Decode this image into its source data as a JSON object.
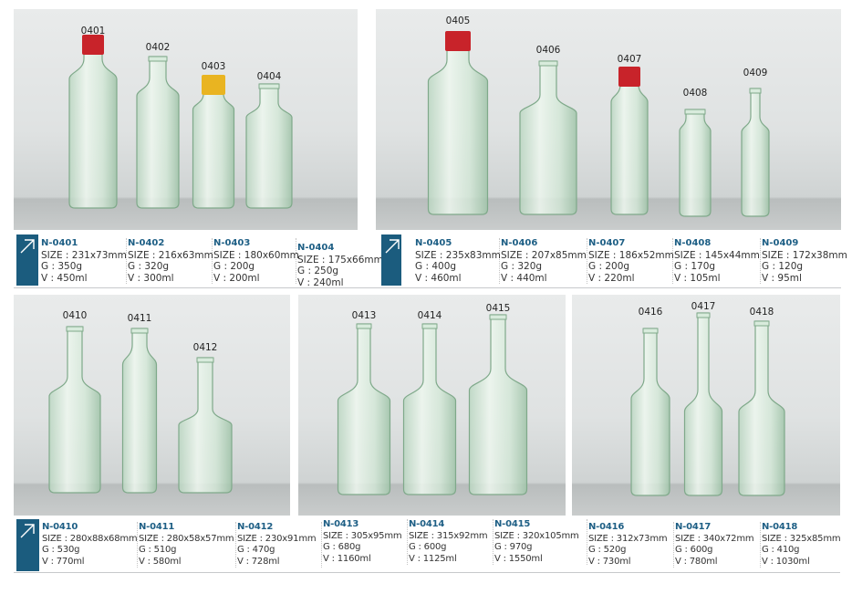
{
  "colors": {
    "accent": "#1b5c7e",
    "code_text": "#1e5f85",
    "glass": "#cfe6d4",
    "cap_red": "#c8232a",
    "cap_yellow": "#e9b421"
  },
  "icons": {
    "spec_marker": "arrow-up-right-icon"
  },
  "groups": [
    {
      "products": [
        {
          "label": "0401",
          "code": "N-0401",
          "size": "SIZE : 231x73mm",
          "g": "G : 350g",
          "v": "V : 450ml",
          "cap": "red"
        },
        {
          "label": "0402",
          "code": "N-0402",
          "size": "SIZE : 216x63mm",
          "g": "G : 320g",
          "v": "V : 300ml"
        },
        {
          "label": "0403",
          "code": "N-0403",
          "size": "SIZE : 180x60mm",
          "g": "G : 200g",
          "v": "V : 200ml",
          "cap": "yellow"
        },
        {
          "label": "0404",
          "code": "N-0404",
          "size": "SIZE : 175x66mm",
          "g": "G : 250g",
          "v": "V : 240ml"
        }
      ]
    },
    {
      "products": [
        {
          "label": "0405",
          "code": "N-0405",
          "size": "SIZE : 235x83mm",
          "g": "G : 400g",
          "v": "V : 460ml",
          "cap": "red"
        },
        {
          "label": "0406",
          "code": "N-0406",
          "size": "SIZE : 207x85mm",
          "g": "G : 320g",
          "v": "V : 440ml"
        },
        {
          "label": "0407",
          "code": "N-0407",
          "size": "SIZE : 186x52mm",
          "g": "G : 200g",
          "v": "V : 220ml",
          "cap": "red"
        },
        {
          "label": "0408",
          "code": "N-0408",
          "size": "SIZE : 145x44mm",
          "g": "G : 170g",
          "v": "V : 105ml"
        },
        {
          "label": "0409",
          "code": "N-0409",
          "size": "SIZE : 172x38mm",
          "g": "G : 120g",
          "v": "V : 95ml"
        }
      ]
    },
    {
      "products": [
        {
          "label": "0410",
          "code": "N-0410",
          "size": "SIZE : 280x88x68mm",
          "g": "G : 530g",
          "v": "V : 770ml"
        },
        {
          "label": "0411",
          "code": "N-0411",
          "size": "SIZE : 280x58x57mm",
          "g": "G : 510g",
          "v": "V : 580ml"
        },
        {
          "label": "0412",
          "code": "N-0412",
          "size": "SIZE : 230x91mm",
          "g": "G : 470g",
          "v": "V : 728ml"
        },
        {
          "label": "0413",
          "code": "N-0413",
          "size": "SIZE : 305x95mm",
          "g": "G : 680g",
          "v": "V : 1160ml"
        },
        {
          "label": "0414",
          "code": "N-0414",
          "size": "SIZE : 315x92mm",
          "g": "G : 600g",
          "v": "V : 1125ml"
        },
        {
          "label": "0415",
          "code": "N-0415",
          "size": "SIZE : 320x105mm",
          "g": "G : 970g",
          "v": "V : 1550ml"
        },
        {
          "label": "0416",
          "code": "N-0416",
          "size": "SIZE : 312x73mm",
          "g": "G : 520g",
          "v": "V : 730ml"
        },
        {
          "label": "0417",
          "code": "N-0417",
          "size": "SIZE : 340x72mm",
          "g": "G : 600g",
          "v": "V : 780ml"
        },
        {
          "label": "0418",
          "code": "N-0418",
          "size": "SIZE : 325x85mm",
          "g": "G : 410g",
          "v": "V : 1030ml"
        }
      ]
    }
  ]
}
